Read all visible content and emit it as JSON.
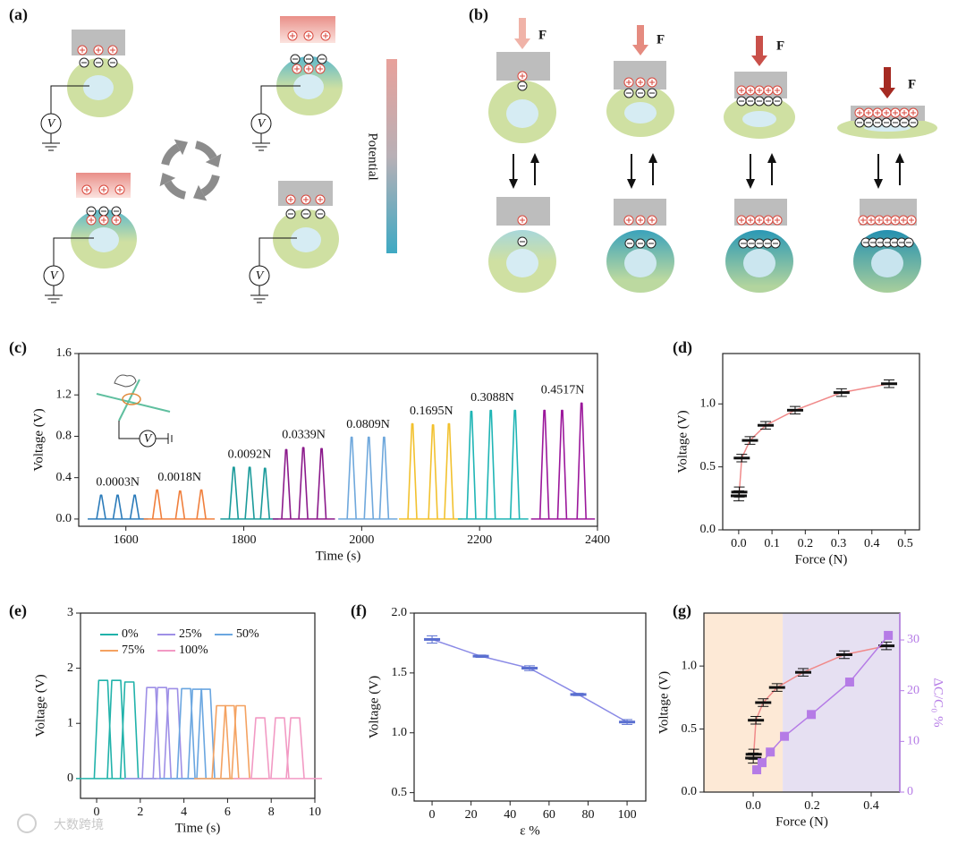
{
  "panels": {
    "a": {
      "label": "(a)",
      "meter": "V",
      "bar_label": "Potential"
    },
    "b": {
      "label": "(b)",
      "force": "F"
    }
  },
  "watermark": "大数跨境",
  "chart_data": [
    {
      "type": "pulse",
      "panel": "(c)",
      "xlabel": "Time (s)",
      "ylabel": "Voltage (V)",
      "inset_meter": "V",
      "xlim": [
        1520,
        2400
      ],
      "xticks": [
        1600,
        1800,
        2000,
        2200,
        2400
      ],
      "ylim": [
        -0.07,
        1.6
      ],
      "yticks": [
        {
          "value": 0,
          "label": "0.0"
        },
        0.4,
        0.8,
        1.2,
        1.6
      ],
      "series": [
        {
          "name": "0.0003N",
          "color": "#2b7bba",
          "x": [
            1558,
            1586,
            1615
          ],
          "values": [
            0.23,
            0.23,
            0.23
          ]
        },
        {
          "name": "0.0018N",
          "color": "#f07f3c",
          "x": [
            1653,
            1692,
            1728
          ],
          "values": [
            0.28,
            0.27,
            0.28
          ]
        },
        {
          "name": "0.0092N",
          "color": "#1a9a9a",
          "x": [
            1783,
            1810,
            1836
          ],
          "values": [
            0.5,
            0.5,
            0.49
          ]
        },
        {
          "name": "0.0339N",
          "color": "#8b1a8b",
          "x": [
            1872,
            1901,
            1932
          ],
          "values": [
            0.67,
            0.69,
            0.68
          ]
        },
        {
          "name": "0.0809N",
          "color": "#6fa8dc",
          "x": [
            1983,
            2012,
            2038
          ],
          "values": [
            0.79,
            0.79,
            0.79
          ]
        },
        {
          "name": "0.1695N",
          "color": "#f2c12e",
          "x": [
            2086,
            2121,
            2148
          ],
          "values": [
            0.92,
            0.91,
            0.92
          ]
        },
        {
          "name": "0.3088N",
          "color": "#1fb5b5",
          "x": [
            2186,
            2219,
            2260
          ],
          "values": [
            1.04,
            1.05,
            1.05
          ]
        },
        {
          "name": "0.4517N",
          "color": "#9b179b",
          "x": [
            2310,
            2340,
            2373
          ],
          "values": [
            1.05,
            1.05,
            1.12
          ]
        }
      ]
    },
    {
      "type": "line",
      "panel": "(d)",
      "xlabel": "Force (N)",
      "ylabel": "Voltage (V)",
      "xlim": [
        -0.048,
        0.543
      ],
      "xticks": [
        {
          "value": 0,
          "label": "0.0"
        },
        0.1,
        0.2,
        0.3,
        0.4,
        0.5
      ],
      "ylim": [
        0,
        1.4
      ],
      "yticks": [
        {
          "value": 0,
          "label": "0.0"
        },
        0.5,
        {
          "value": 1,
          "label": "1.0"
        }
      ],
      "series": [
        {
          "color": "#f08a8a",
          "marker_color": "#111111",
          "x": [
            0.0003,
            0.0018,
            0.0092,
            0.0339,
            0.0809,
            0.1695,
            0.3088,
            0.4517
          ],
          "values": [
            0.27,
            0.3,
            0.57,
            0.71,
            0.83,
            0.95,
            1.09,
            1.16
          ],
          "errors": [
            0.04,
            0.04,
            0.03,
            0.03,
            0.03,
            0.03,
            0.03,
            0.03
          ]
        }
      ]
    },
    {
      "type": "pulse",
      "panel": "(e)",
      "xlabel": "Time (s)",
      "ylabel": "Voltage (V)",
      "legend": "upper left",
      "xlim": [
        -0.74,
        10
      ],
      "xticks": [
        0,
        2,
        4,
        6,
        8,
        10
      ],
      "ylim": [
        -0.36,
        3
      ],
      "yticks": [
        0,
        1,
        2,
        3
      ],
      "series": [
        {
          "name": "0%",
          "color": "#20b2aa",
          "x": [
            0.3,
            0.9,
            1.5
          ],
          "values": [
            1.78,
            1.78,
            1.75
          ]
        },
        {
          "name": "25%",
          "color": "#9e8fe6",
          "x": [
            2.5,
            3.0,
            3.5
          ],
          "values": [
            1.65,
            1.65,
            1.63
          ]
        },
        {
          "name": "50%",
          "color": "#6aa6e0",
          "x": [
            4.1,
            4.6,
            5.0
          ],
          "values": [
            1.63,
            1.62,
            1.62
          ]
        },
        {
          "name": "75%",
          "color": "#f4a261",
          "x": [
            5.7,
            6.1,
            6.6
          ],
          "values": [
            1.32,
            1.32,
            1.32
          ]
        },
        {
          "name": "100%",
          "color": "#f29ac4",
          "x": [
            7.5,
            8.4,
            9.1
          ],
          "values": [
            1.1,
            1.1,
            1.1
          ]
        }
      ]
    },
    {
      "type": "line",
      "panel": "(f)",
      "xlabel": "ε %",
      "ylabel": "Voltage (V)",
      "xlim": [
        -9.2,
        109.6
      ],
      "xticks": [
        0,
        20,
        40,
        60,
        80,
        100
      ],
      "ylim": [
        0.43,
        2.0
      ],
      "yticks": [
        0.5,
        {
          "value": 1,
          "label": "1.0"
        },
        1.5,
        {
          "value": 2,
          "label": "2.0"
        }
      ],
      "series": [
        {
          "color": "#8a8ae6",
          "marker_color": "#5a6fd0",
          "x": [
            0,
            25,
            50,
            75,
            100
          ],
          "values": [
            1.78,
            1.64,
            1.54,
            1.32,
            1.09
          ],
          "errors": [
            0.03,
            0.01,
            0.02,
            0.01,
            0.02
          ]
        }
      ]
    },
    {
      "type": "line",
      "panel": "(g)",
      "xlabel": "Force (N)",
      "ylabel": "Voltage (V)",
      "y2label": "ΔC/C₀ %",
      "y2color": "#b57be6",
      "xlim": [
        -0.167,
        0.497
      ],
      "xticks": [
        {
          "value": 0,
          "label": "0.0"
        },
        0.2,
        0.4
      ],
      "ylim": [
        0,
        1.42
      ],
      "yticks": [
        {
          "value": 0,
          "label": "0.0"
        },
        0.5,
        {
          "value": 1,
          "label": "1.0"
        }
      ],
      "y2lim": [
        0,
        35.3
      ],
      "y2ticks": [
        0,
        10,
        20,
        30
      ],
      "regions": [
        {
          "x": [
            -0.167,
            0.1
          ],
          "color": "#fde9d6"
        },
        {
          "x": [
            0.1,
            0.497
          ],
          "color": "#e6e0f2"
        }
      ],
      "series": [
        {
          "color": "#f08a8a",
          "marker_color": "#111111",
          "x": [
            0.0003,
            0.0018,
            0.0092,
            0.0339,
            0.0809,
            0.1695,
            0.3088,
            0.4517
          ],
          "values": [
            0.27,
            0.3,
            0.57,
            0.71,
            0.83,
            0.95,
            1.09,
            1.16
          ],
          "errors": [
            0.04,
            0.04,
            0.03,
            0.03,
            0.03,
            0.03,
            0.03,
            0.03
          ]
        },
        {
          "color": "#b57be6",
          "marker": "square",
          "axis": "y2",
          "x": [
            0.012,
            0.03,
            0.058,
            0.106,
            0.197,
            0.327,
            0.458
          ],
          "values": [
            4.4,
            5.8,
            7.9,
            11,
            15.3,
            21.7,
            30.9
          ]
        }
      ]
    }
  ]
}
